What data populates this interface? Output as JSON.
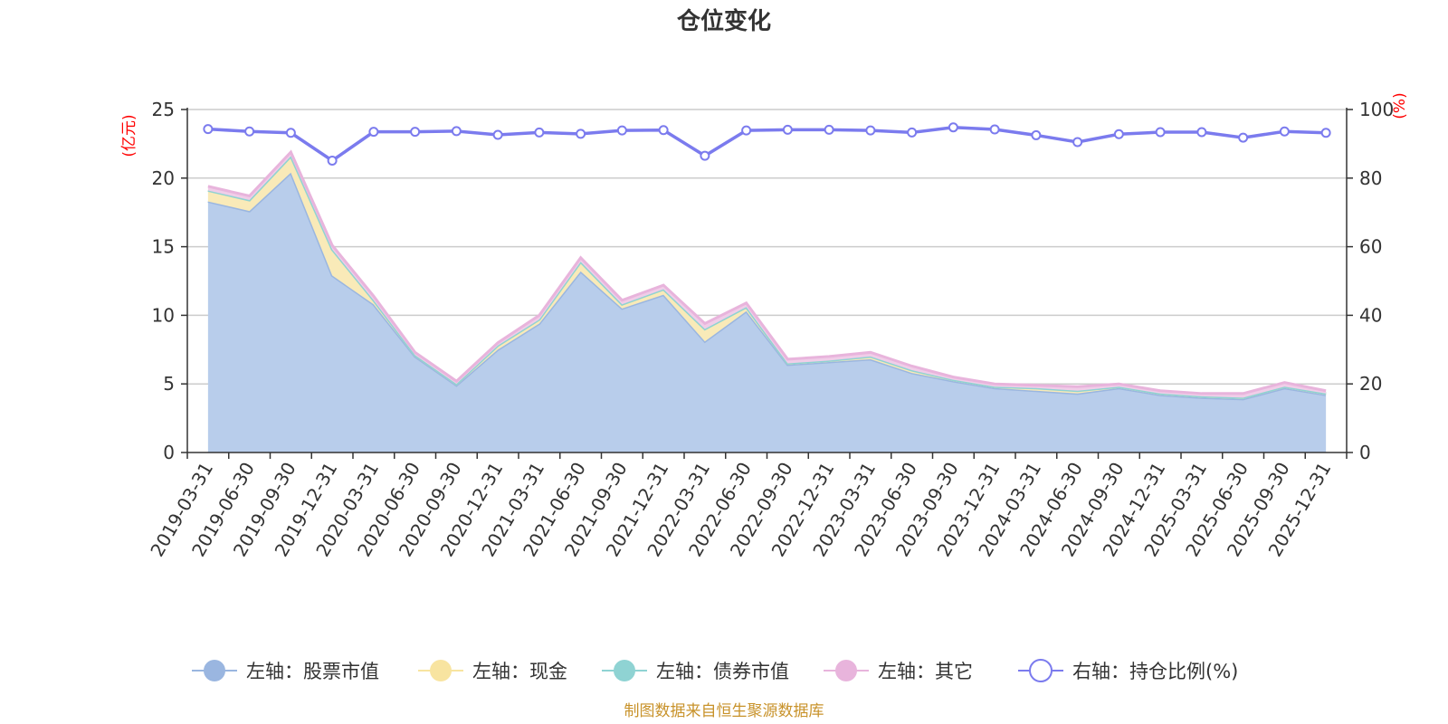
{
  "chart_data": {
    "type": "area",
    "title": "仓位变化",
    "y_left_label": "(亿元)",
    "y_right_label": "(%)",
    "y_left_range": [
      0,
      25
    ],
    "y_right_range": [
      0,
      100
    ],
    "y_left_ticks": [
      "0",
      "5",
      "10",
      "15",
      "20",
      "25"
    ],
    "y_right_ticks": [
      "0",
      "20",
      "40",
      "60",
      "80",
      "100"
    ],
    "stacked": true,
    "grid": true,
    "legend_position": "bottom",
    "source": "制图数据来自恒生聚源数据库",
    "categories": [
      "2019-03-31",
      "2019-06-30",
      "2019-09-30",
      "2019-12-31",
      "2020-03-31",
      "2020-06-30",
      "2020-09-30",
      "2020-12-31",
      "2021-03-31",
      "2021-06-30",
      "2021-09-30",
      "2021-12-31",
      "2022-03-31",
      "2022-06-30",
      "2022-09-30",
      "2022-12-31",
      "2023-03-31",
      "2023-06-30",
      "2023-09-30",
      "2023-12-31",
      "2024-03-31",
      "2024-06-30",
      "2024-09-30",
      "2024-12-31",
      "2025-03-31",
      "2025-06-30",
      "2025-09-30",
      "2025-12-31"
    ],
    "series": [
      {
        "name": "左轴：股票市值",
        "axis": "left",
        "color": "#9ab6e0",
        "fill": "#b8cdeb",
        "values": [
          18.3,
          17.6,
          20.4,
          12.9,
          10.8,
          7.0,
          4.9,
          7.5,
          9.4,
          13.2,
          10.5,
          11.5,
          8.1,
          10.3,
          6.4,
          6.6,
          6.8,
          5.8,
          5.2,
          4.7,
          4.5,
          4.3,
          4.7,
          4.2,
          4.0,
          3.9,
          4.7,
          4.2
        ]
      },
      {
        "name": "左轴：现金",
        "axis": "left",
        "color": "#f8e4a0",
        "fill": "#f9eab8",
        "values": [
          0.8,
          0.8,
          1.2,
          1.9,
          0.3,
          0.1,
          0.1,
          0.3,
          0.3,
          0.7,
          0.3,
          0.4,
          0.9,
          0.3,
          0.1,
          0.1,
          0.2,
          0.2,
          0.1,
          0.1,
          0.2,
          0.2,
          0.1,
          0.1,
          0.1,
          0.1,
          0.1,
          0.1
        ]
      },
      {
        "name": "左轴：债券市值",
        "axis": "left",
        "color": "#8fd3d3",
        "fill": "#b3e3e3",
        "values": [
          0,
          0,
          0,
          0,
          0,
          0,
          0,
          0,
          0,
          0,
          0,
          0,
          0,
          0,
          0,
          0,
          0,
          0,
          0,
          0,
          0,
          0,
          0,
          0,
          0,
          0,
          0,
          0
        ]
      },
      {
        "name": "左轴：其它",
        "axis": "left",
        "color": "#e8b4dc",
        "fill": "#f0cde8",
        "values": [
          0.3,
          0.3,
          0.3,
          0.3,
          0.3,
          0.2,
          0.2,
          0.2,
          0.3,
          0.3,
          0.3,
          0.3,
          0.4,
          0.3,
          0.3,
          0.3,
          0.3,
          0.3,
          0.2,
          0.2,
          0.2,
          0.3,
          0.2,
          0.2,
          0.2,
          0.3,
          0.3,
          0.2
        ]
      },
      {
        "name": "右轴：持仓比例(%)",
        "axis": "right",
        "color": "#7b7bee",
        "values": [
          94.3,
          93.6,
          93.2,
          85.1,
          93.5,
          93.5,
          93.7,
          92.6,
          93.3,
          92.9,
          93.9,
          94.0,
          86.5,
          93.9,
          94.1,
          94.1,
          93.9,
          93.3,
          94.8,
          94.2,
          92.5,
          90.5,
          92.8,
          93.4,
          93.4,
          91.8,
          93.6,
          93.2
        ]
      }
    ]
  }
}
